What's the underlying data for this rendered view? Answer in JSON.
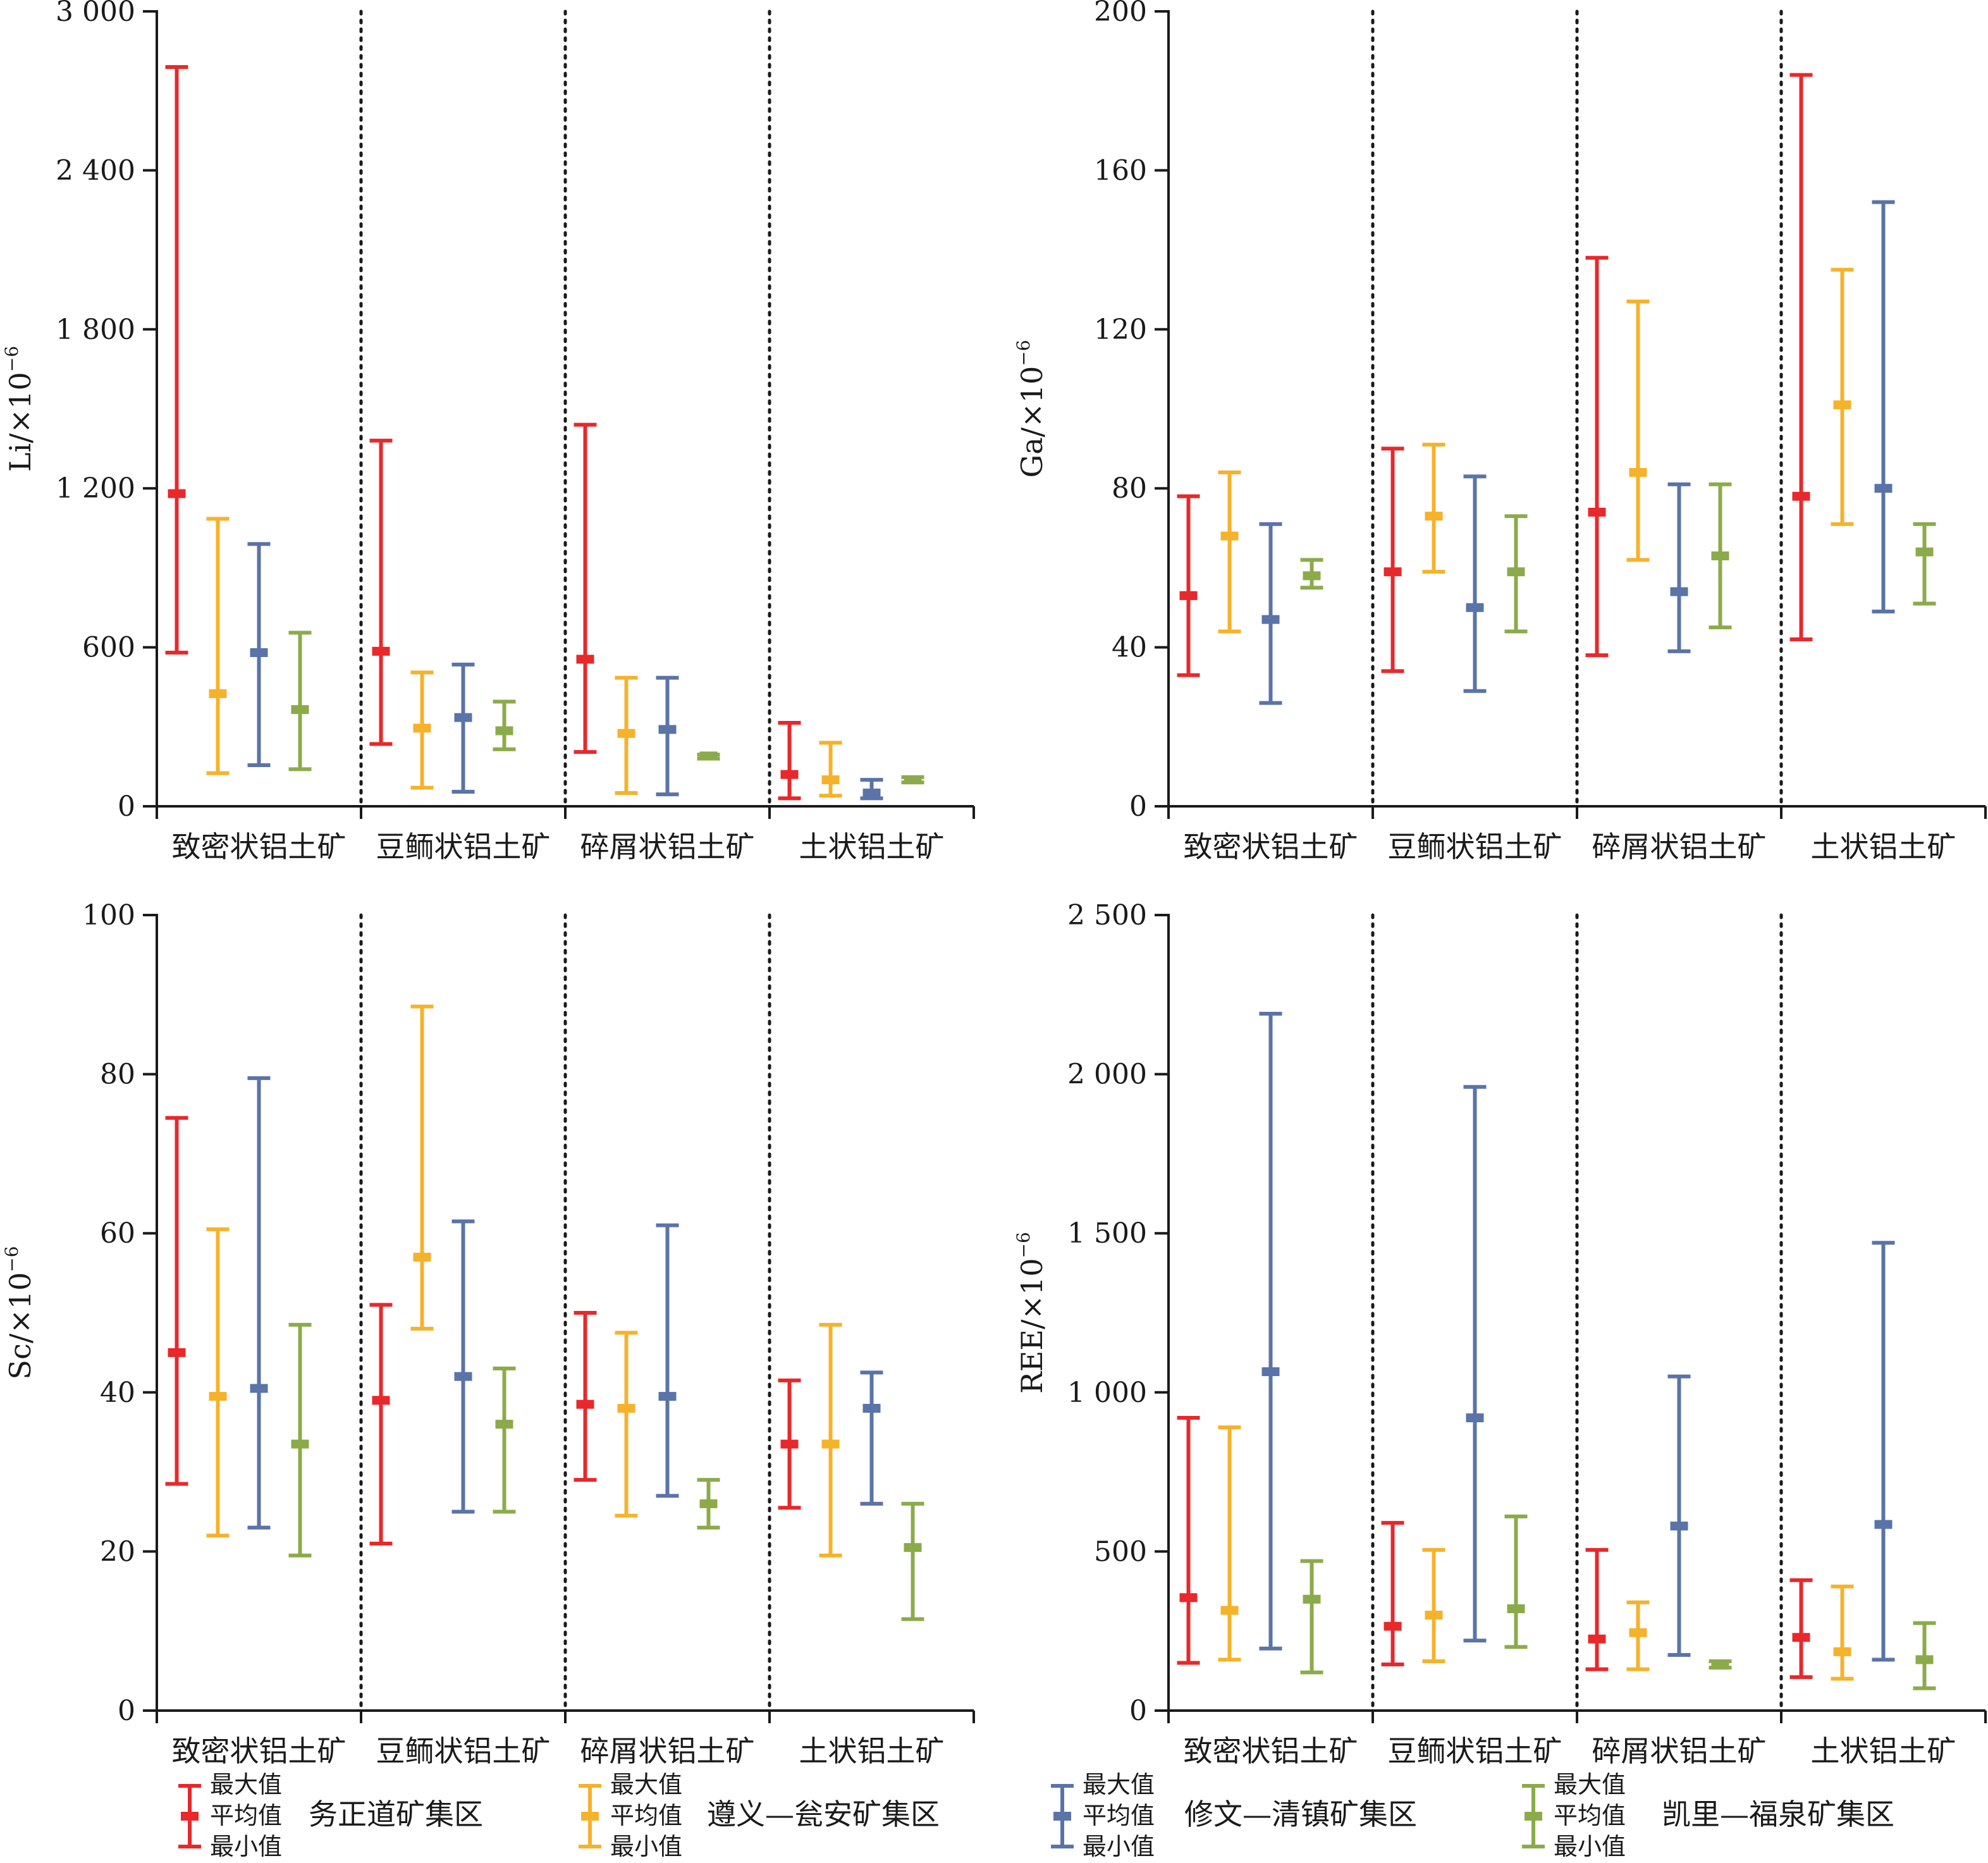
{
  "colors": {
    "wuzhengdao": "#e8282b",
    "zunyi": "#f5b22b",
    "xiuwen": "#5a73a8",
    "kaili": "#8bab4a",
    "axis": "#1a1a1a"
  },
  "categories": [
    "致密状铝土矿",
    "豆鲕状铝土矿",
    "碎屑状铝土矿",
    "土状铝土矿"
  ],
  "legend": {
    "marker_labels": [
      "最大值",
      "平均值",
      "最小值"
    ],
    "entries": [
      {
        "label": "务正道矿集区",
        "color_key": "wuzhengdao"
      },
      {
        "label": "遵义—瓮安矿集区",
        "color_key": "zunyi"
      },
      {
        "label": "修文—清镇矿集区",
        "color_key": "xiuwen"
      },
      {
        "label": "凯里—福泉矿集区",
        "color_key": "kaili"
      }
    ]
  },
  "chart_data": [
    {
      "type": "errorbar",
      "ylabel": "Li/×10",
      "ylabel_exp": "−6",
      "ylim": [
        0,
        3000
      ],
      "yticks": [
        0,
        600,
        1200,
        1800,
        2400,
        3000
      ],
      "ytick_labels": [
        "0",
        "600",
        "1 200",
        "1 800",
        "2 400",
        "3 000"
      ],
      "categories": [
        "致密状铝土矿",
        "豆鲕状铝土矿",
        "碎屑状铝土矿",
        "土状铝土矿"
      ],
      "series": [
        {
          "name": "务正道矿集区",
          "color_key": "wuzhengdao",
          "max": [
            2790,
            1380,
            1440,
            315
          ],
          "mean": [
            1180,
            585,
            555,
            120
          ],
          "min": [
            580,
            235,
            205,
            30
          ]
        },
        {
          "name": "遵义—瓮安矿集区",
          "color_key": "zunyi",
          "max": [
            1085,
            505,
            485,
            240
          ],
          "mean": [
            425,
            295,
            275,
            100
          ],
          "min": [
            125,
            70,
            50,
            40
          ]
        },
        {
          "name": "修文—清镇矿集区",
          "color_key": "xiuwen",
          "max": [
            990,
            535,
            485,
            100
          ],
          "mean": [
            580,
            335,
            290,
            50
          ],
          "min": [
            155,
            55,
            45,
            30
          ]
        },
        {
          "name": "凯里—福泉矿集区",
          "color_key": "kaili",
          "max": [
            655,
            395,
            195,
            110
          ],
          "mean": [
            365,
            285,
            190,
            100
          ],
          "min": [
            140,
            215,
            180,
            90
          ]
        }
      ]
    },
    {
      "type": "errorbar",
      "ylabel": "Ga/×10",
      "ylabel_exp": "−6",
      "ylim": [
        0,
        200
      ],
      "yticks": [
        0,
        40,
        80,
        120,
        160,
        200
      ],
      "ytick_labels": [
        "0",
        "40",
        "80",
        "120",
        "160",
        "200"
      ],
      "categories": [
        "致密状铝土矿",
        "豆鲕状铝土矿",
        "碎屑状铝土矿",
        "土状铝土矿"
      ],
      "series": [
        {
          "name": "务正道矿集区",
          "color_key": "wuzhengdao",
          "max": [
            78,
            90,
            138,
            184
          ],
          "mean": [
            53,
            59,
            74,
            78
          ],
          "min": [
            33,
            34,
            38,
            42
          ]
        },
        {
          "name": "遵义—瓮安矿集区",
          "color_key": "zunyi",
          "max": [
            84,
            91,
            127,
            135
          ],
          "mean": [
            68,
            73,
            84,
            101
          ],
          "min": [
            44,
            59,
            62,
            71
          ]
        },
        {
          "name": "修文—清镇矿集区",
          "color_key": "xiuwen",
          "max": [
            71,
            83,
            81,
            152
          ],
          "mean": [
            47,
            50,
            54,
            80
          ],
          "min": [
            26,
            29,
            39,
            49
          ]
        },
        {
          "name": "凯里—福泉矿集区",
          "color_key": "kaili",
          "max": [
            62,
            73,
            81,
            71
          ],
          "mean": [
            58,
            59,
            63,
            64
          ],
          "min": [
            55,
            44,
            45,
            51
          ]
        }
      ]
    },
    {
      "type": "errorbar",
      "ylabel": "Sc/×10",
      "ylabel_exp": "−6",
      "ylim": [
        0,
        100
      ],
      "yticks": [
        0,
        20,
        40,
        60,
        80,
        100
      ],
      "ytick_labels": [
        "0",
        "20",
        "40",
        "60",
        "80",
        "100"
      ],
      "categories": [
        "致密状铝土矿",
        "豆鲕状铝土矿",
        "碎屑状铝土矿",
        "土状铝土矿"
      ],
      "series": [
        {
          "name": "务正道矿集区",
          "color_key": "wuzhengdao",
          "max": [
            74.5,
            51,
            50,
            41.5
          ],
          "mean": [
            45,
            39,
            38.5,
            33.5
          ],
          "min": [
            28.5,
            21,
            29,
            25.5
          ]
        },
        {
          "name": "遵义—瓮安矿集区",
          "color_key": "zunyi",
          "max": [
            60.5,
            88.5,
            47.5,
            48.5
          ],
          "mean": [
            39.5,
            57,
            38,
            33.5
          ],
          "min": [
            22,
            48,
            24.5,
            19.5
          ]
        },
        {
          "name": "修文—清镇矿集区",
          "color_key": "xiuwen",
          "max": [
            79.5,
            61.5,
            61,
            42.5
          ],
          "mean": [
            40.5,
            42,
            39.5,
            38
          ],
          "min": [
            23,
            25,
            27,
            26
          ]
        },
        {
          "name": "凯里—福泉矿集区",
          "color_key": "kaili",
          "max": [
            48.5,
            43,
            29,
            26
          ],
          "mean": [
            33.5,
            36,
            26,
            20.5
          ],
          "min": [
            19.5,
            25,
            23,
            11.5
          ]
        }
      ]
    },
    {
      "type": "errorbar",
      "ylabel": "REE/×10",
      "ylabel_exp": "−6",
      "ylim": [
        0,
        2500
      ],
      "yticks": [
        0,
        500,
        1000,
        1500,
        2000,
        2500
      ],
      "ytick_labels": [
        "0",
        "500",
        "1 000",
        "1 500",
        "2 000",
        "2 500"
      ],
      "categories": [
        "致密状铝土矿",
        "豆鲕状铝土矿",
        "碎屑状铝土矿",
        "土状铝土矿"
      ],
      "series": [
        {
          "name": "务正道矿集区",
          "color_key": "wuzhengdao",
          "max": [
            920,
            590,
            505,
            410
          ],
          "mean": [
            355,
            265,
            225,
            230
          ],
          "min": [
            150,
            145,
            130,
            105
          ]
        },
        {
          "name": "遵义—瓮安矿集区",
          "color_key": "zunyi",
          "max": [
            890,
            505,
            340,
            390
          ],
          "mean": [
            315,
            300,
            245,
            185
          ],
          "min": [
            160,
            155,
            130,
            100
          ]
        },
        {
          "name": "修文—清镇矿集区",
          "color_key": "xiuwen",
          "max": [
            2190,
            1960,
            1050,
            1470
          ],
          "mean": [
            1065,
            920,
            580,
            585
          ],
          "min": [
            195,
            220,
            175,
            160
          ]
        },
        {
          "name": "凯里—福泉矿集区",
          "color_key": "kaili",
          "max": [
            470,
            610,
            155,
            275
          ],
          "mean": [
            350,
            320,
            145,
            160
          ],
          "min": [
            120,
            200,
            135,
            70
          ]
        }
      ]
    }
  ]
}
